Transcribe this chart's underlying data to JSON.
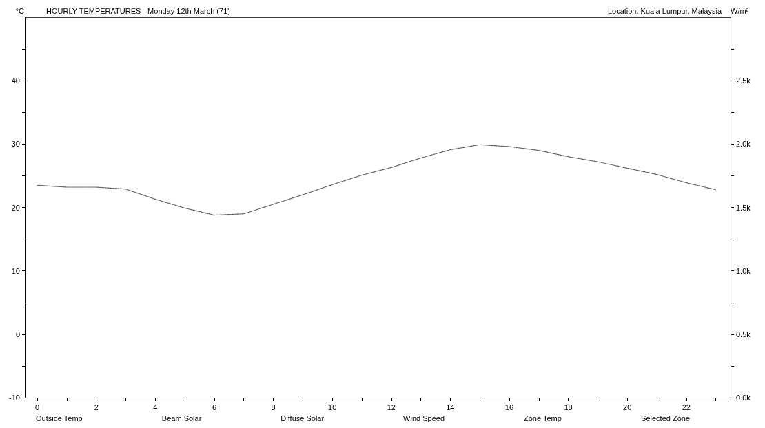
{
  "chart_data": {
    "type": "line",
    "title": "HOURLY TEMPERATURES - Monday 12th March (71)",
    "ylabel": "°C",
    "y2label": "W/m²",
    "annotations": [
      "Location. Kuala Lumpur, Malaysia"
    ],
    "x": [
      0,
      1,
      2,
      3,
      4,
      5,
      6,
      7,
      8,
      9,
      10,
      11,
      12,
      13,
      14,
      15,
      16,
      17,
      18,
      19,
      20,
      21,
      22,
      23
    ],
    "series": [
      {
        "name": "Outside Temp",
        "color": "#555555",
        "values": [
          23.5,
          23.2,
          23.2,
          22.9,
          21.3,
          19.9,
          18.8,
          19.0,
          20.5,
          22.0,
          23.6,
          25.1,
          26.3,
          27.8,
          29.1,
          29.9,
          29.6,
          29.0,
          28.0,
          27.2,
          26.2,
          25.2,
          23.9,
          22.8
        ]
      },
      {
        "name": "Beam Solar",
        "values": [
          null,
          null,
          null,
          null,
          null,
          null,
          null,
          null,
          null,
          null,
          null,
          null,
          null,
          null,
          null,
          null,
          null,
          null,
          null,
          null,
          null,
          null,
          null,
          null
        ]
      },
      {
        "name": "Diffuse Solar",
        "values": [
          null,
          null,
          null,
          null,
          null,
          null,
          null,
          null,
          null,
          null,
          null,
          null,
          null,
          null,
          null,
          null,
          null,
          null,
          null,
          null,
          null,
          null,
          null,
          null
        ]
      },
      {
        "name": "Wind Speed",
        "values": [
          null,
          null,
          null,
          null,
          null,
          null,
          null,
          null,
          null,
          null,
          null,
          null,
          null,
          null,
          null,
          null,
          null,
          null,
          null,
          null,
          null,
          null,
          null,
          null
        ]
      },
      {
        "name": "Zone Temp",
        "values": [
          null,
          null,
          null,
          null,
          null,
          null,
          null,
          null,
          null,
          null,
          null,
          null,
          null,
          null,
          null,
          null,
          null,
          null,
          null,
          null,
          null,
          null,
          null,
          null
        ]
      },
      {
        "name": "Selected Zone",
        "values": [
          null,
          null,
          null,
          null,
          null,
          null,
          null,
          null,
          null,
          null,
          null,
          null,
          null,
          null,
          null,
          null,
          null,
          null,
          null,
          null,
          null,
          null,
          null,
          null
        ]
      }
    ],
    "xlim": [
      -0.4,
      23.5
    ],
    "xticks": [
      0,
      {
        "value": 1,
        "label": null
      },
      2,
      {
        "value": 3,
        "label": null
      },
      4,
      {
        "value": 5,
        "label": null
      },
      6,
      {
        "value": 7,
        "label": null
      },
      8,
      {
        "value": 9,
        "label": null
      },
      10,
      {
        "value": 11,
        "label": null
      },
      12,
      {
        "value": 13,
        "label": null
      },
      14,
      {
        "value": 15,
        "label": null
      },
      16,
      {
        "value": 17,
        "label": null
      },
      18,
      {
        "value": 19,
        "label": null
      },
      20,
      {
        "value": 21,
        "label": null
      },
      22,
      {
        "value": 23,
        "label": null
      }
    ],
    "ylim": [
      -10,
      50
    ],
    "yticks": [
      -10,
      {
        "value": -5,
        "label": null
      },
      0,
      {
        "value": 5,
        "label": null
      },
      10,
      {
        "value": 15,
        "label": null
      },
      20,
      {
        "value": 25,
        "label": null
      },
      30,
      {
        "value": 35,
        "label": null
      },
      40,
      {
        "value": 45,
        "label": null
      }
    ],
    "y2lim": [
      0,
      3000
    ],
    "y2ticks": [
      {
        "value": 0,
        "label": "0.0k"
      },
      {
        "value": 250,
        "label": null
      },
      {
        "value": 500,
        "label": "0.5k"
      },
      {
        "value": 750,
        "label": null
      },
      {
        "value": 1000,
        "label": "1.0k"
      },
      {
        "value": 1250,
        "label": null
      },
      {
        "value": 1500,
        "label": "1.5k"
      },
      {
        "value": 1750,
        "label": null
      },
      {
        "value": 2000,
        "label": "2.0k"
      },
      {
        "value": 2250,
        "label": null
      },
      {
        "value": 2500,
        "label": "2.5k"
      },
      {
        "value": 2750,
        "label": null
      }
    ],
    "grid": false,
    "legend": "bottom",
    "marker": "none",
    "line_style": "dotted"
  }
}
